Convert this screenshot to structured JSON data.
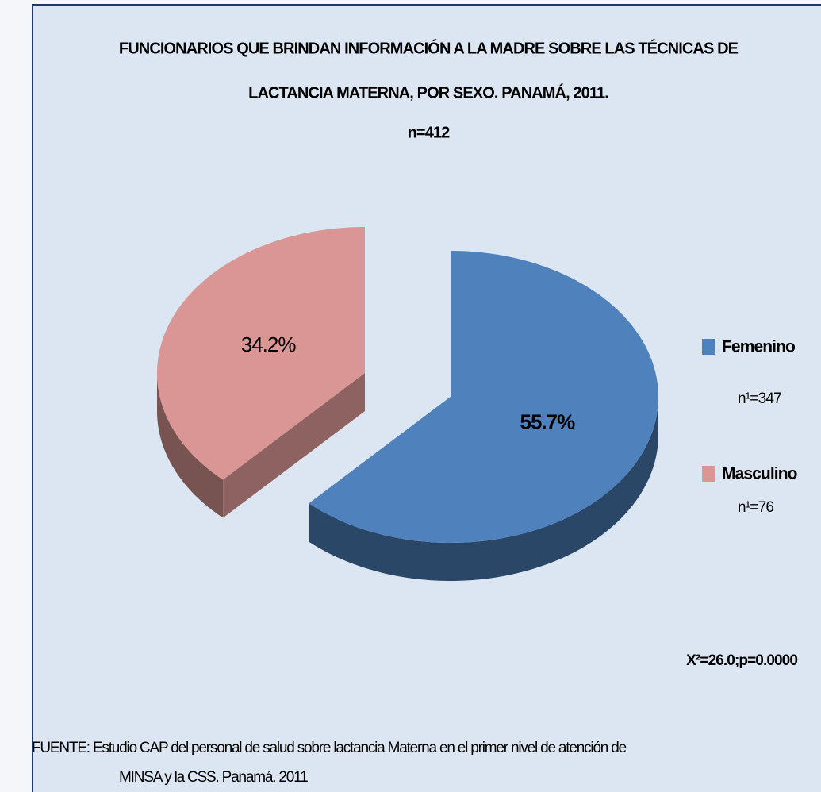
{
  "chart_data": {
    "type": "pie",
    "title": [
      "FUNCIONARIOS QUE BRINDAN INFORMACIÓN A LA MADRE SOBRE LAS TÉCNICAS DE",
      "LACTANCIA MATERNA, POR SEXO. PANAMÁ, 2011."
    ],
    "subtitle": "n=412",
    "categories": [
      "Femenino",
      "Masculino"
    ],
    "category_notes": [
      "n¹=347",
      "n¹=76"
    ],
    "values": [
      55.7,
      34.2
    ],
    "value_labels": [
      "55.7%",
      "34.2%"
    ],
    "colors": [
      "#4f81bd",
      "#d99694"
    ],
    "legend": "right",
    "annotation": "X²=26.0;p=0.0000",
    "source": [
      "FUENTE: Estudio CAP del personal de salud sobre lactancia Materna en el primer nivel de atención de",
      "MINSA y la CSS. Panamá. 2011"
    ]
  }
}
